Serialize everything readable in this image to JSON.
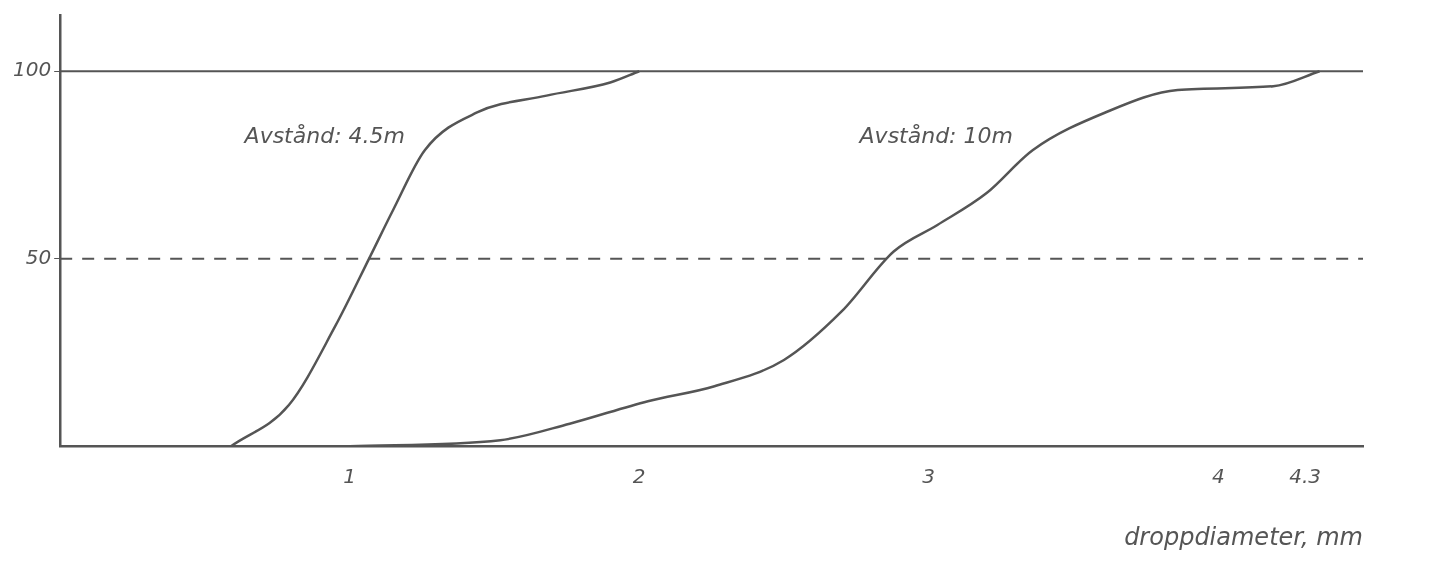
{
  "chart_data": {
    "type": "line",
    "xlabel": "droppdiameter, mm",
    "xlim": [
      0,
      4.5
    ],
    "xticks": [
      1,
      2,
      3,
      4,
      4.3
    ],
    "ylim": [
      0,
      115
    ],
    "yticks": [
      50,
      100
    ],
    "grid": false,
    "legend": false,
    "marker": "none",
    "line_style": "solid",
    "ref_lines": [
      {
        "axis": "y",
        "value": 100,
        "line_style": "solid",
        "color": "#555555"
      },
      {
        "axis": "y",
        "value": 50,
        "line_style": "dashed",
        "color": "#555555"
      }
    ],
    "series": [
      {
        "name": "Avstånd: 4.5m",
        "color": "#555555",
        "x": [
          0.59,
          0.79,
          0.95,
          1.07,
          1.15,
          1.26,
          1.44,
          1.68,
          1.9,
          2.0
        ],
        "values": [
          0,
          11,
          32,
          50.5,
          63,
          79,
          89,
          93.5,
          97,
          100
        ]
      },
      {
        "name": "Avstånd: 10m",
        "color": "#555555",
        "x": [
          1.0,
          1.52,
          1.76,
          2.03,
          2.26,
          2.5,
          2.7,
          2.88,
          3.03,
          3.2,
          3.36,
          3.61,
          3.86,
          4.19,
          4.35
        ],
        "values": [
          0,
          1.6,
          6,
          12,
          16,
          23,
          36,
          52,
          59,
          67.5,
          79,
          89,
          95,
          96,
          100
        ]
      }
    ]
  }
}
